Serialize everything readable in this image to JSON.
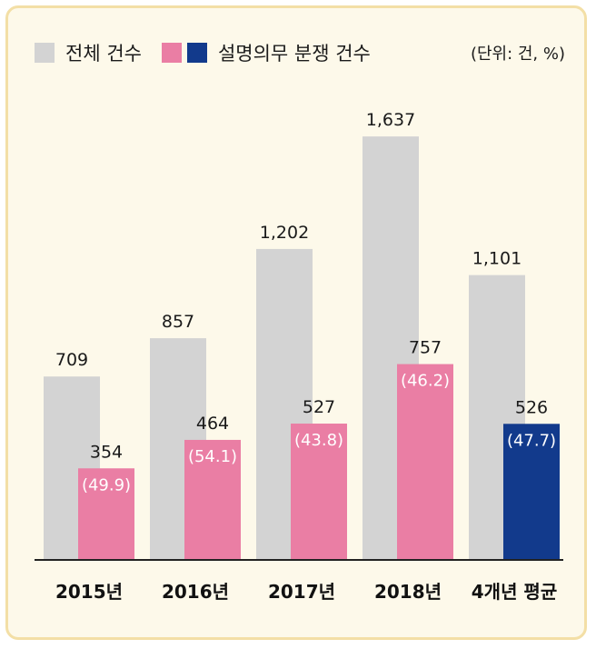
{
  "legend": {
    "total_label": "전체 건수",
    "dispute_label": "설명의무 분쟁 건수",
    "unit": "(단위: 건, %)"
  },
  "colors": {
    "total": "#d3d3d3",
    "dispute": "#ea7ea4",
    "average": "#123a8c",
    "axis": "#222222"
  },
  "chart_data": {
    "type": "bar",
    "categories": [
      "2015년",
      "2016년",
      "2017년",
      "2018년",
      "4개년 평균"
    ],
    "series": [
      {
        "name": "전체 건수",
        "values": [
          709,
          857,
          1202,
          1637,
          1101
        ],
        "labels": [
          "709",
          "857",
          "1,202",
          "1,637",
          "1,101"
        ]
      },
      {
        "name": "설명의무 분쟁 건수",
        "values": [
          354,
          464,
          527,
          757,
          526
        ],
        "labels": [
          "354",
          "464",
          "527",
          "757",
          "526"
        ],
        "percent_labels": [
          "(49.9)",
          "(54.1)",
          "(43.8)",
          "(46.2)",
          "(47.7)"
        ]
      }
    ],
    "ylim": [
      0,
      1800
    ],
    "grid": false,
    "legend_position": "top-left"
  }
}
